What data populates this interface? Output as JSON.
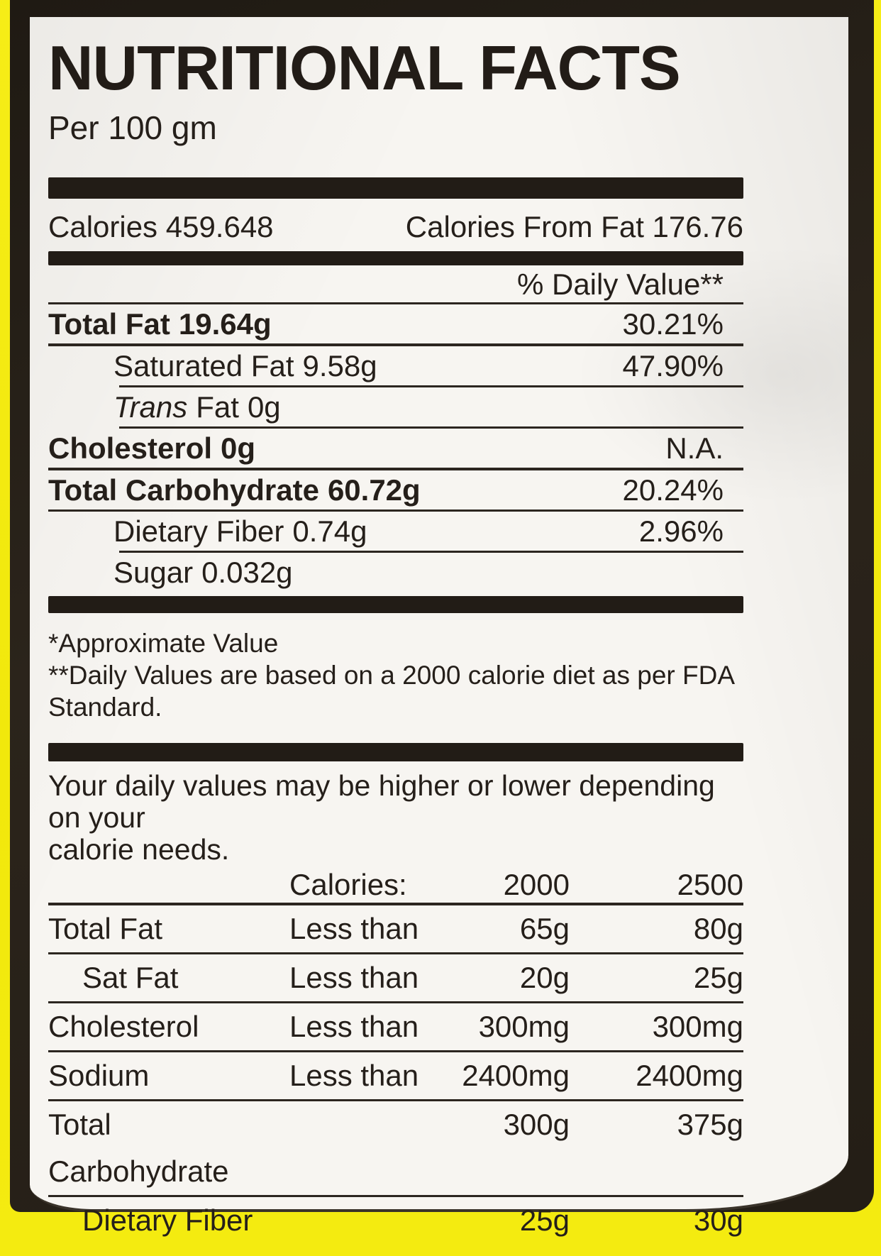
{
  "label": {
    "title": "NUTRITIONAL FACTS",
    "serving": "Per 100 gm",
    "calories": "Calories 459.648",
    "calories_from_fat": "Calories From Fat 176.76",
    "daily_value_header": "% Daily Value**",
    "nutrients": [
      {
        "name_italic": "",
        "name": "Total Fat",
        "amount": "19.64g",
        "value": "30.21%"
      },
      {
        "name_italic": "",
        "name": "Saturated Fat",
        "amount": "9.58g",
        "value": "47.90%"
      },
      {
        "name_italic": "Trans",
        "name": "Fat",
        "amount": "0g",
        "value": ""
      },
      {
        "name_italic": "",
        "name": "Cholesterol",
        "amount": "0g",
        "value": "N.A."
      },
      {
        "name_italic": "",
        "name": "Total Carbohydrate",
        "amount": "60.72g",
        "value": "20.24%"
      },
      {
        "name_italic": "",
        "name": "Dietary Fiber",
        "amount": "0.74g",
        "value": "2.96%"
      },
      {
        "name_italic": "",
        "name": "Sugar",
        "amount": "0.032g",
        "value": ""
      }
    ],
    "footnote_1": "*Approximate Value",
    "footnote_2": "**Daily Values are based on a 2000 calorie diet as per FDA Standard.",
    "daily_note_line1": "Your daily values may be higher or lower depending on your",
    "daily_note_line2": "calorie needs.",
    "reference_table": {
      "header_label": "Calories:",
      "col_2000": "2000",
      "col_2500": "2500",
      "rows": [
        {
          "item": "Total Fat",
          "qualifier": "Less than",
          "v2000": "65g",
          "v2500": "80g"
        },
        {
          "item": "Sat Fat",
          "qualifier": "Less than",
          "v2000": "20g",
          "v2500": "25g"
        },
        {
          "item": "Cholesterol",
          "qualifier": "Less than",
          "v2000": "300mg",
          "v2500": "300mg"
        },
        {
          "item": "Sodium",
          "qualifier": "Less than",
          "v2000": "2400mg",
          "v2500": "2400mg"
        },
        {
          "item": "Total Carbohydrate",
          "qualifier": "",
          "v2000": "300g",
          "v2500": "375g"
        },
        {
          "item": "Dietary Fiber",
          "qualifier": "",
          "v2000": "25g",
          "v2500": "30g"
        }
      ]
    },
    "colors": {
      "package_yellow": "#f2e90e",
      "frame_dark": "#26201a",
      "label_white": "#f7f5f1",
      "ink": "#251f1a"
    }
  }
}
